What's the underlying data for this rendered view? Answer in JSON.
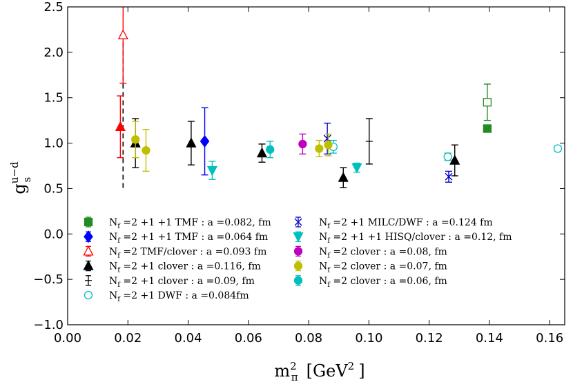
{
  "chart_data": {
    "type": "scatter",
    "title": "",
    "xlabel": "m_π^2 [GeV^2]",
    "xlabel_parts": {
      "base": "m",
      "sup": "2",
      "sub": "π",
      "unit_open": "[GeV",
      "unit_sup": "2",
      "unit_close": "]"
    },
    "ylabel": "g_s^{u-d}",
    "ylabel_parts": {
      "base": "g",
      "sup": "u−d",
      "sub": "s"
    },
    "xlim": [
      0.0,
      0.165
    ],
    "ylim": [
      -1.0,
      2.5
    ],
    "xticks": [
      "0.00",
      "0.02",
      "0.04",
      "0.06",
      "0.08",
      "0.10",
      "0.12",
      "0.14",
      "0.16"
    ],
    "xtick_values": [
      0.0,
      0.02,
      0.04,
      0.06,
      0.08,
      0.1,
      0.12,
      0.14,
      0.16
    ],
    "yticks": [
      "−1.0",
      "−0.5",
      "0.0",
      "0.5",
      "1.0",
      "1.5",
      "2.0",
      "2.5"
    ],
    "ytick_values": [
      -1.0,
      -0.5,
      0.0,
      0.5,
      1.0,
      1.5,
      2.0,
      2.5
    ],
    "grid": false,
    "legend_position": "lower-center",
    "series": [
      {
        "name": "N_f =2 +1 +1 TMF : a =0.082, fm",
        "label_main": "N",
        "label_sub": "f",
        "label_rest": " =2 +1 +1 TMF : a =0.082, fm",
        "marker": "square",
        "filled": true,
        "color": "#228b22",
        "points": [
          {
            "x": 0.1393,
            "y": 1.16,
            "err": 0.0
          }
        ]
      },
      {
        "name": "N_f =2 +1 +1 TMF : a =0.064 fm",
        "label_main": "N",
        "label_sub": "f",
        "label_rest": " =2 +1 +1 TMF : a =0.064 fm",
        "marker": "diamond",
        "filled": true,
        "color": "#0000ff",
        "points": [
          {
            "x": 0.0455,
            "y": 1.02,
            "err": 0.37
          }
        ]
      },
      {
        "name": "N_f =2 TMF/clover : a =0.093 fm",
        "label_main": "N",
        "label_sub": "f",
        "label_rest": " =2 TMF/clover : a =0.093 fm",
        "marker": "triangle-up",
        "filled": false,
        "color": "#ff0000",
        "points": [
          {
            "x": 0.0184,
            "y": 2.19,
            "err": 0.53
          }
        ]
      },
      {
        "name": "N_f =2 +1 clover : a =0.116, fm",
        "label_main": "N",
        "label_sub": "f",
        "label_rest": " =2 +1 clover : a =0.116, fm",
        "marker": "triangle-up",
        "filled": true,
        "color": "#000000",
        "points": [
          {
            "x": 0.0225,
            "y": 1.0,
            "err": 0.27
          },
          {
            "x": 0.041,
            "y": 1.0,
            "err": 0.24
          },
          {
            "x": 0.0645,
            "y": 0.89,
            "err": 0.1
          },
          {
            "x": 0.0915,
            "y": 0.62,
            "err": 0.11
          },
          {
            "x": 0.1285,
            "y": 0.81,
            "err": 0.17
          }
        ]
      },
      {
        "name": "N_f =2 +1 clover : a =0.09, fm",
        "label_main": "N",
        "label_sub": "f",
        "label_rest": " =2 +1 clover : a =0.09, fm",
        "marker": "hbar",
        "filled": false,
        "color": "#000000",
        "points": [
          {
            "x": 0.1001,
            "y": 1.02,
            "err": 0.25
          }
        ]
      },
      {
        "name": "N_f =2 +1 DWF : a =0.084fm",
        "label_main": "N",
        "label_sub": "f",
        "label_rest": " =2 +1 DWF : a =0.084fm",
        "marker": "circle",
        "filled": false,
        "color": "#00bfbf",
        "points": [
          {
            "x": 0.0882,
            "y": 0.96,
            "err": 0.07
          },
          {
            "x": 0.1262,
            "y": 0.85,
            "err": 0.04
          },
          {
            "x": 0.1627,
            "y": 0.94,
            "err": 0.03
          }
        ]
      },
      {
        "name": "N_f =2 +1 MILC/DWF : a =0.124 fm",
        "label_main": "N",
        "label_sub": "f",
        "label_rest": " =2 +1 MILC/DWF : a =0.124 fm",
        "marker": "x",
        "filled": false,
        "color": "#0000cd",
        "points": [
          {
            "x": 0.0862,
            "y": 1.05,
            "err": 0.17
          },
          {
            "x": 0.1265,
            "y": 0.63,
            "err": 0.06
          }
        ]
      },
      {
        "name": "N_f =2 +1 +1 HISQ/clover : a =0.12, fm",
        "label_main": "N",
        "label_sub": "f",
        "label_rest": " =2 +1 +1 HISQ/clover : a =0.12, fm",
        "marker": "triangle-down",
        "filled": true,
        "color": "#00bfbf",
        "points": [
          {
            "x": 0.048,
            "y": 0.7,
            "err": 0.1
          },
          {
            "x": 0.096,
            "y": 0.73,
            "err": 0.05
          }
        ]
      },
      {
        "name": "N_f =2 clover : a =0.08, fm",
        "label_main": "N",
        "label_sub": "f",
        "label_rest": " =2 clover : a =0.08, fm",
        "marker": "circle",
        "filled": true,
        "color": "#bf00bf",
        "points": [
          {
            "x": 0.078,
            "y": 0.99,
            "err": 0.11
          }
        ]
      },
      {
        "name": "N_f =2 clover : a =0.07, fm",
        "label_main": "N",
        "label_sub": "f",
        "label_rest": " =2 clover : a =0.07, fm",
        "marker": "circle",
        "filled": true,
        "color": "#bfbf00",
        "points": [
          {
            "x": 0.0225,
            "y": 1.04,
            "err": 0.2
          },
          {
            "x": 0.026,
            "y": 0.92,
            "err": 0.23
          },
          {
            "x": 0.0835,
            "y": 0.94,
            "err": 0.09
          },
          {
            "x": 0.0865,
            "y": 0.98,
            "err": 0.12
          }
        ]
      },
      {
        "name": "N_f =2 clover : a =0.06, fm",
        "label_main": "N",
        "label_sub": "f",
        "label_rest": " =2 clover : a =0.06, fm",
        "marker": "circle",
        "filled": true,
        "color": "#00bfbf",
        "points": [
          {
            "x": 0.0672,
            "y": 0.93,
            "err": 0.09
          }
        ]
      }
    ],
    "extra_points": [
      {
        "x": 0.1393,
        "y": 1.45,
        "err": 0.2,
        "marker": "square",
        "filled": false,
        "color": "#228b22"
      },
      {
        "x": 0.0175,
        "y": 1.18,
        "err": 0.34,
        "marker": "triangle-up",
        "filled": true,
        "color": "#ff0000"
      }
    ],
    "dashed_vertical": {
      "x": 0.0184,
      "y_from": 0.5,
      "y_to": 2.2,
      "color": "#000000"
    },
    "legend_columns": [
      [
        0,
        1,
        2,
        3,
        4,
        5
      ],
      [
        6,
        7,
        8,
        9,
        10
      ]
    ]
  }
}
